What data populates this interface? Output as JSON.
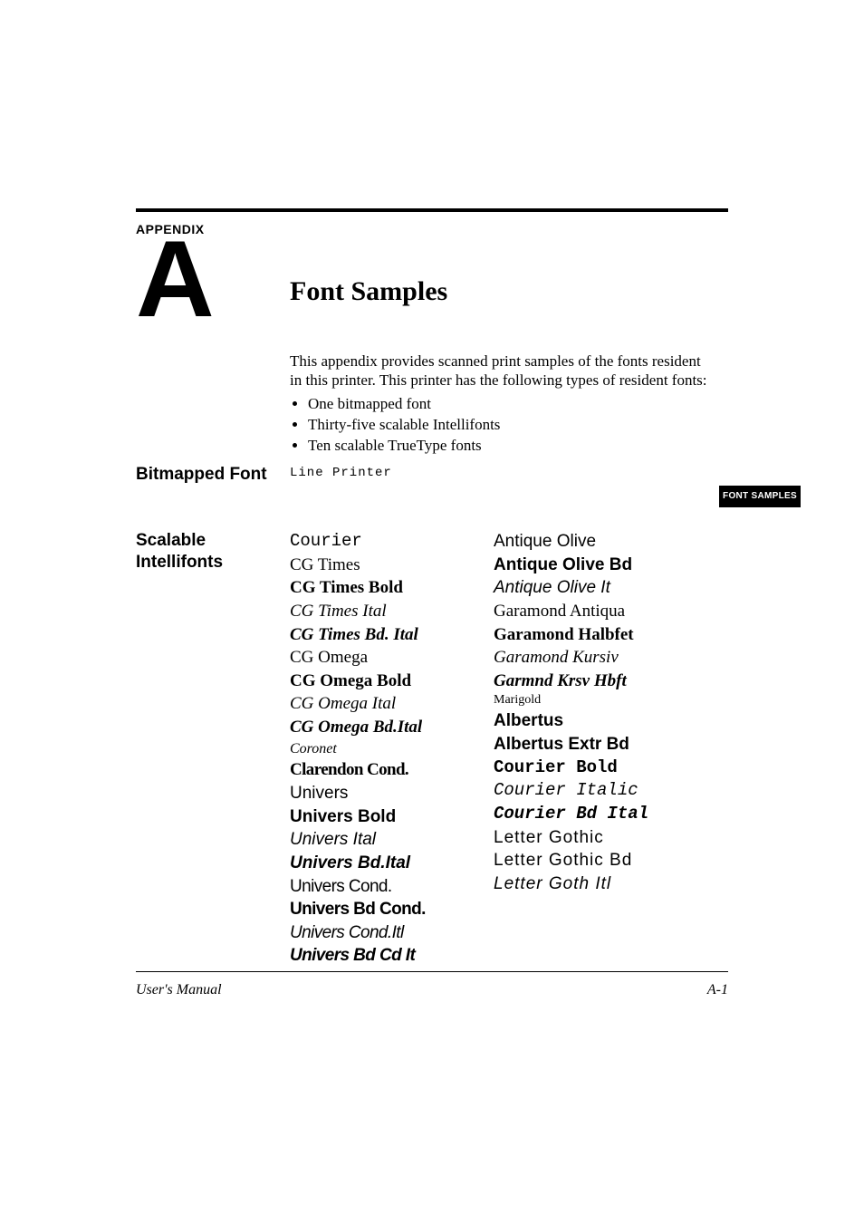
{
  "appendix": {
    "label": "APPENDIX",
    "letter": "A"
  },
  "title": "Font Samples",
  "intro": {
    "lead": "This appendix provides scanned print samples of the fonts resident in this printer. This printer has the following types of resident fonts:",
    "bullets": [
      "One bitmapped font",
      "Thirty-five scalable Intellifonts",
      "Ten scalable TrueType fonts"
    ]
  },
  "sections": {
    "bitmapped_label": "Bitmapped Font",
    "bitmapped_sample": "Line Printer",
    "scalable_label_l1": "Scalable",
    "scalable_label_l2": "Intellifonts"
  },
  "side_tab": "FONT SAMPLES",
  "fonts_col1": [
    {
      "text": "Courier",
      "classes": "mono"
    },
    {
      "text": "CG Times",
      "classes": "serif"
    },
    {
      "text": "CG Times Bold",
      "classes": "serif bold"
    },
    {
      "text": "CG Times Ital",
      "classes": "serif ital"
    },
    {
      "text": "CG Times Bd. Ital",
      "classes": "serif bold ital"
    },
    {
      "text": "CG Omega",
      "classes": "serif"
    },
    {
      "text": "CG Omega Bold",
      "classes": "serif bold"
    },
    {
      "text": "CG Omega Ital",
      "classes": "serif ital"
    },
    {
      "text": "CG Omega Bd.Ital",
      "classes": "serif bold ital"
    },
    {
      "text": "Coronet",
      "classes": "script ital"
    },
    {
      "text": "Clarendon Cond.",
      "classes": "serif bold cond"
    },
    {
      "text": "Univers",
      "classes": "sans"
    },
    {
      "text": "Univers Bold",
      "classes": "sans bold"
    },
    {
      "text": "Univers Ital",
      "classes": "sans ital"
    },
    {
      "text": "Univers Bd.Ital",
      "classes": "sans bold ital"
    },
    {
      "text": "Univers Cond.",
      "classes": "sans cond"
    },
    {
      "text": "Univers Bd Cond.",
      "classes": "sans bold cond"
    },
    {
      "text": "Univers Cond.Itl",
      "classes": "sans ital cond"
    },
    {
      "text": "Univers Bd Cd It",
      "classes": "sans bold ital cond"
    }
  ],
  "fonts_col2": [
    {
      "text": "Antique Olive",
      "classes": "sans"
    },
    {
      "text": "Antique Olive Bd",
      "classes": "sans xbold"
    },
    {
      "text": "Antique Olive It",
      "classes": "sans ital"
    },
    {
      "text": "Garamond Antiqua",
      "classes": "serif"
    },
    {
      "text": "Garamond Halbfet",
      "classes": "serif bold"
    },
    {
      "text": "Garamond Kursiv",
      "classes": "serif ital"
    },
    {
      "text": "Garmnd Krsv Hbft",
      "classes": "serif bold ital"
    },
    {
      "text": "Marigold",
      "classes": "script small"
    },
    {
      "text": "Albertus",
      "classes": "sans bold"
    },
    {
      "text": "Albertus Extr Bd",
      "classes": "sans xbold"
    },
    {
      "text": "Courier Bold",
      "classes": "mono bold"
    },
    {
      "text": "Courier Italic",
      "classes": "mono ital"
    },
    {
      "text": "Courier Bd Ital",
      "classes": "mono bold ital"
    },
    {
      "text": "Letter Gothic",
      "classes": "sans wide"
    },
    {
      "text": "Letter Gothic Bd",
      "classes": "sans wide"
    },
    {
      "text": "Letter Goth Itl",
      "classes": "sans ital wide"
    }
  ],
  "footer": {
    "left": "User's Manual",
    "right": "A-1"
  },
  "colors": {
    "text": "#000000",
    "background": "#ffffff"
  }
}
